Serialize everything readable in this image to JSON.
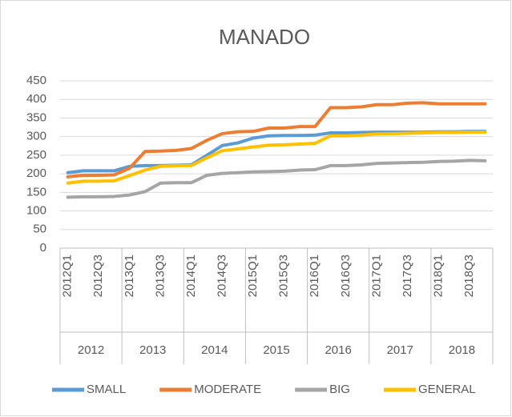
{
  "chart_data": {
    "type": "line",
    "title": "MANADO",
    "categories": [
      "2012Q1",
      null,
      "2012Q3",
      null,
      "2013Q1",
      null,
      "2013Q3",
      null,
      "2014Q1",
      null,
      "2014Q3",
      null,
      "2015Q1",
      null,
      "2015Q3",
      null,
      "2016Q1",
      null,
      "2016Q3",
      null,
      "2017Q1",
      null,
      "2017Q3",
      null,
      "2018Q1",
      null,
      "2018Q3",
      null
    ],
    "category_groups": [
      "2012",
      "2013",
      "2014",
      "2015",
      "2016",
      "2017",
      "2018"
    ],
    "series": [
      {
        "name": "SMALL",
        "color": "#5b9bd5",
        "values": [
          203,
          208,
          208,
          208,
          220,
          222,
          222,
          223,
          224,
          250,
          276,
          283,
          296,
          302,
          303,
          303,
          304,
          310,
          310,
          311,
          312,
          312,
          312,
          312,
          313,
          313,
          314,
          314
        ]
      },
      {
        "name": "MODERATE",
        "color": "#ed7d31",
        "values": [
          192,
          196,
          196,
          197,
          215,
          260,
          261,
          263,
          268,
          290,
          308,
          313,
          314,
          323,
          323,
          327,
          327,
          378,
          378,
          380,
          386,
          386,
          390,
          391,
          388,
          388,
          388,
          388
        ]
      },
      {
        "name": "BIG",
        "color": "#a5a5a5",
        "values": [
          137,
          138,
          138,
          139,
          143,
          152,
          175,
          176,
          176,
          196,
          201,
          203,
          205,
          206,
          207,
          210,
          211,
          222,
          222,
          224,
          228,
          229,
          230,
          231,
          233,
          234,
          236,
          235
        ]
      },
      {
        "name": "GENERAL",
        "color": "#ffc000",
        "values": [
          175,
          180,
          180,
          181,
          195,
          210,
          220,
          222,
          222,
          243,
          262,
          267,
          272,
          277,
          278,
          280,
          282,
          302,
          302,
          304,
          307,
          308,
          309,
          310,
          311,
          311,
          312,
          312
        ]
      }
    ],
    "ylim": [
      0,
      450
    ],
    "yticks": [
      0,
      50,
      100,
      150,
      200,
      250,
      300,
      350,
      400,
      450
    ],
    "grid": true,
    "legend": "bottom"
  }
}
